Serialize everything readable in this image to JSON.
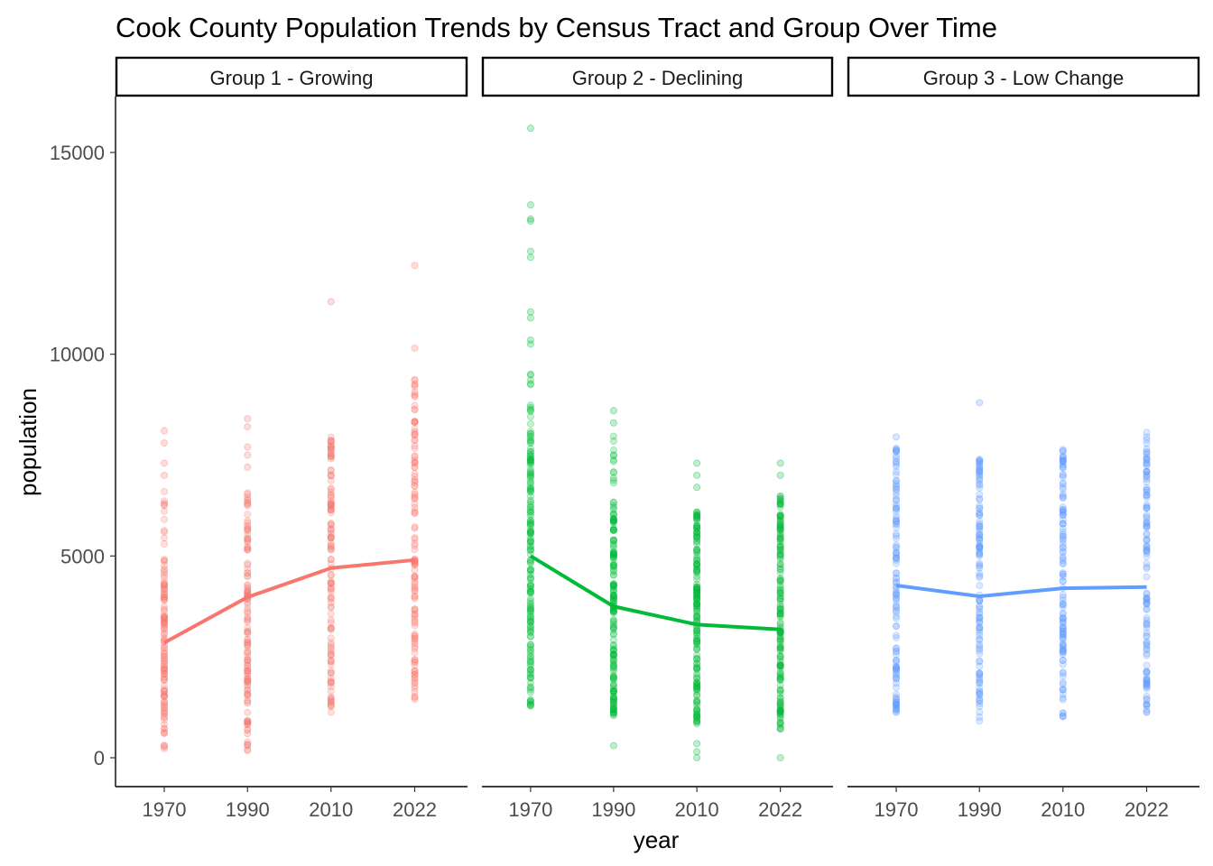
{
  "chart_data": {
    "type": "scatter",
    "title": "Cook County Population Trends by Census Tract and Group Over Time",
    "xlabel": "year",
    "ylabel": "population",
    "x_ticks": [
      "1970",
      "1990",
      "2010",
      "2022"
    ],
    "y_ticks": [
      0,
      5000,
      10000,
      15000
    ],
    "ylim": [
      -750,
      16500
    ],
    "grid": false,
    "legend": "none",
    "panels": [
      {
        "label": "Group 1 - Growing",
        "color": "#F8766D",
        "mean_line": [
          2850,
          3980,
          4700,
          4900
        ],
        "points": {
          "1970": {
            "min": 200,
            "max": 6600,
            "dense_max": 4900,
            "outliers": [
              7000,
              7300,
              7800,
              8100
            ]
          },
          "1990": {
            "min": 150,
            "max": 6600,
            "dense_max": 5800,
            "outliers": [
              300,
              600,
              7200,
              7500,
              7700,
              8200,
              8400
            ]
          },
          "2010": {
            "min": 1100,
            "max": 8000,
            "dense_max": 7600,
            "outliers": [
              1300,
              11300
            ]
          },
          "2022": {
            "min": 1400,
            "max": 9400,
            "dense_max": 8600,
            "outliers": [
              10150,
              12200
            ]
          }
        }
      },
      {
        "label": "Group 2 - Declining",
        "color": "#00BA38",
        "mean_line": [
          5000,
          3750,
          3300,
          3180
        ],
        "points": {
          "1970": {
            "min": 1250,
            "max": 9600,
            "dense_max": 8100,
            "outliers": [
              10250,
              10350,
              10900,
              11050,
              12400,
              12550,
              13300,
              13350,
              13700,
              15600
            ]
          },
          "1990": {
            "min": 1050,
            "max": 8000,
            "dense_max": 6500,
            "outliers": [
              300,
              8300,
              8600
            ]
          },
          "2010": {
            "min": 800,
            "max": 6100,
            "dense_max": 5900,
            "outliers": [
              0,
              150,
              350,
              6700,
              7000,
              7300
            ]
          },
          "2022": {
            "min": 700,
            "max": 6500,
            "dense_max": 6200,
            "outliers": [
              0,
              7000,
              7300
            ]
          }
        }
      },
      {
        "label": "Group 3 - Low Change",
        "color": "#619CFF",
        "mean_line": [
          4270,
          4000,
          4200,
          4230
        ],
        "points": {
          "1970": {
            "min": 1100,
            "max": 7700,
            "dense_max": 7200,
            "outliers": [
              7950
            ]
          },
          "1990": {
            "min": 900,
            "max": 7400,
            "dense_max": 7100,
            "outliers": [
              8800
            ]
          },
          "2010": {
            "min": 1000,
            "max": 7700,
            "dense_max": 7300,
            "outliers": []
          },
          "2022": {
            "min": 1050,
            "max": 8100,
            "dense_max": 7300,
            "outliers": [
              7650,
              7950
            ]
          }
        }
      }
    ]
  }
}
